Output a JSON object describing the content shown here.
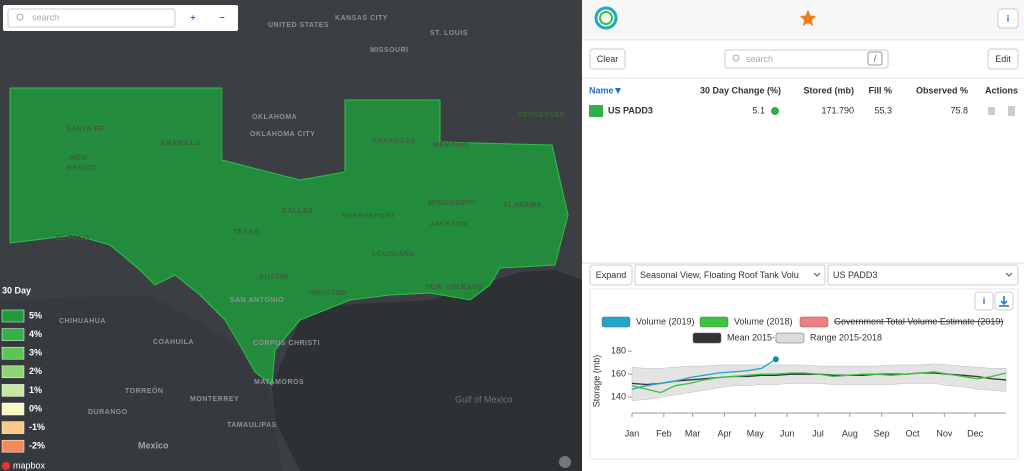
{
  "map": {
    "search_placeholder": "search",
    "zoom_in": "+",
    "zoom_out": "−",
    "places": [
      "UNITED STATES",
      "KANSAS CITY",
      "MISSOURI",
      "ST. LOUIS",
      "TENNESSEE",
      "OKLAHOMA",
      "OKLAHOMA CITY",
      "ARKANSAS",
      "MEMPHIS",
      "SANTA FE",
      "AMARILLO",
      "NEW",
      "MEXICO",
      "DALLAS",
      "SHREVEPORT",
      "TEXAS",
      "MISSISSIPPI",
      "ALABAMA",
      "JACKSON",
      "LOUISIANA",
      "EL PASO",
      "AUSTIN",
      "SAN ANTONIO",
      "HOUSTON",
      "NEW ORLEANS",
      "CHIHUAHUA",
      "COAHUILA",
      "CORPUS CHRISTI",
      "TORREÓN",
      "MONTERREY",
      "MATAMOROS",
      "DURANGO",
      "TAMAULIPAS"
    ],
    "sea": "Gulf of Mexico",
    "country": "Mexico",
    "legend": {
      "title": "30 Day",
      "items": [
        {
          "label": "5%",
          "color": "#1f9a3b"
        },
        {
          "label": "4%",
          "color": "#34b04a"
        },
        {
          "label": "3%",
          "color": "#5dc456"
        },
        {
          "label": "2%",
          "color": "#8fd573"
        },
        {
          "label": "1%",
          "color": "#c6e8a0"
        },
        {
          "label": "0%",
          "color": "#fbf6c6"
        },
        {
          "label": "-1%",
          "color": "#fbc88c"
        },
        {
          "label": "-2%",
          "color": "#f48b57"
        }
      ]
    },
    "attribution": "mapbox"
  },
  "panel": {
    "clear": "Clear",
    "edit": "Edit",
    "expand": "Expand",
    "search_placeholder": "search",
    "search_key": "/",
    "info": "i",
    "table": {
      "columns": [
        "Name",
        "30 Day Change (%)",
        "Stored (mb)",
        "Fill %",
        "Observed %",
        "Actions"
      ],
      "rows": [
        {
          "name": "US PADD3",
          "color": "#2fb046",
          "change": "5.1",
          "stored": "171.790",
          "fill": "55.3",
          "observed": "75.8"
        }
      ]
    },
    "view_select": "Seasonal View, Floating Roof Tank Volu",
    "region_select": "US PADD3"
  },
  "chart_data": {
    "type": "line",
    "y_label": "Storage (mb)",
    "x": [
      1,
      15,
      29,
      43,
      57,
      71,
      85,
      99,
      113,
      127,
      141,
      155,
      169,
      183,
      197,
      211,
      225,
      239,
      253,
      267,
      281,
      295,
      309,
      323,
      337,
      351,
      365
    ],
    "xlim": [
      1,
      365
    ],
    "xticks": [
      {
        "value": 1,
        "label": "Jan"
      },
      {
        "value": 32,
        "label": "Feb"
      },
      {
        "value": 60,
        "label": "Mar"
      },
      {
        "value": 91,
        "label": "Apr"
      },
      {
        "value": 121,
        "label": "May"
      },
      {
        "value": 152,
        "label": "Jun"
      },
      {
        "value": 182,
        "label": "Jul"
      },
      {
        "value": 213,
        "label": "Aug"
      },
      {
        "value": 244,
        "label": "Sep"
      },
      {
        "value": 274,
        "label": "Oct"
      },
      {
        "value": 305,
        "label": "Nov"
      },
      {
        "value": 335,
        "label": "Dec"
      }
    ],
    "ylim": [
      128,
      181
    ],
    "yticks": [
      140,
      160,
      180
    ],
    "series": [
      {
        "name": "Volume (2019)",
        "color": "#1fa7c9",
        "values": [
          147,
          150,
          152,
          154,
          157,
          159,
          161,
          162,
          163,
          165,
          173,
          null,
          null,
          null,
          null,
          null,
          null,
          null,
          null,
          null,
          null,
          null,
          null,
          null,
          null,
          null,
          null
        ]
      },
      {
        "name": "Volume (2018)",
        "color": "#3cc43c",
        "values": [
          150,
          147,
          144,
          150,
          152,
          155,
          157,
          158,
          159,
          160,
          160,
          161,
          161,
          160,
          158,
          159,
          160,
          160,
          159,
          160,
          161,
          162,
          160,
          158,
          156,
          158,
          161
        ]
      },
      {
        "name": "Government Total Volume Estimate (2019)",
        "color": "#f08080",
        "hidden": true
      },
      {
        "name": "Mean 2015-2018",
        "color": "#333333",
        "values": [
          152,
          151,
          152,
          154,
          155,
          156,
          157,
          158,
          158,
          159,
          159,
          160,
          160,
          160,
          159,
          159,
          159,
          160,
          160,
          160,
          161,
          161,
          160,
          159,
          158,
          156,
          155
        ]
      },
      {
        "name": "Range 2015-2018",
        "color": "#dcdcdc",
        "low": [
          137,
          138,
          140,
          142,
          144,
          146,
          148,
          150,
          150,
          151,
          151,
          152,
          152,
          152,
          151,
          151,
          151,
          151,
          151,
          152,
          152,
          152,
          150,
          149,
          147,
          146,
          145
        ],
        "high": [
          166,
          165,
          165,
          166,
          167,
          167,
          168,
          168,
          168,
          168,
          168,
          168,
          168,
          167,
          167,
          167,
          167,
          167,
          168,
          168,
          168,
          169,
          168,
          167,
          166,
          165,
          165
        ]
      }
    ]
  }
}
